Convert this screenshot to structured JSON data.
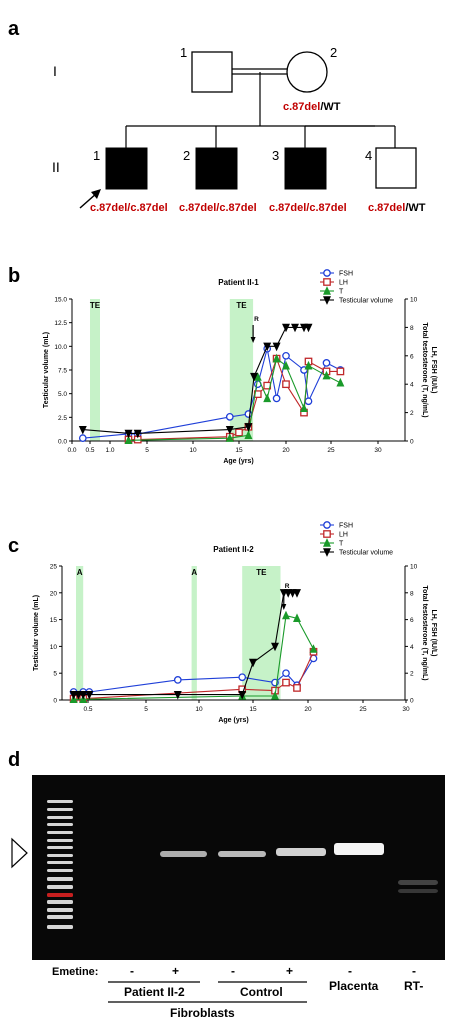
{
  "panels": {
    "a": {
      "label": "a",
      "generations": [
        "I",
        "II"
      ],
      "gen1_individuals": [
        "1",
        "2"
      ],
      "gen1_genotype_mut": "c.87del",
      "gen1_genotype_wt": "/WT",
      "gen2": [
        {
          "num": "1",
          "genotype_mut": "c.87del/c.87del",
          "genotype_wt": "",
          "affected": true,
          "proband": true
        },
        {
          "num": "2",
          "genotype_mut": "c.87del/c.87del",
          "genotype_wt": "",
          "affected": true,
          "proband": false
        },
        {
          "num": "3",
          "genotype_mut": "c.87del/c.87del",
          "genotype_wt": "",
          "affected": true,
          "proband": false
        },
        {
          "num": "4",
          "genotype_mut": "c.87del",
          "genotype_wt": "/WT",
          "affected": false,
          "proband": false
        }
      ],
      "colors": {
        "mutation_text": "#c00000",
        "affected_fill": "#000000"
      }
    },
    "b": {
      "label": "b"
    },
    "c": {
      "label": "c"
    },
    "d": {
      "label": "d",
      "emetine_label": "Emetine:",
      "lane_marks": [
        "-",
        "+",
        "-",
        "+",
        "-",
        "-"
      ],
      "group_patient": "Patient II-2",
      "group_control": "Control",
      "group_fibroblasts": "Fibroblasts",
      "placenta": "Placenta",
      "rt_minus": "RT-"
    }
  },
  "chart_data": [
    {
      "type": "line",
      "panel": "b",
      "title": "Patient II-1",
      "xlabel": "Age (yrs)",
      "ylabel_left": "Testicular volume (mL)",
      "ylabel_right": "LH, FSH (IU/L)\nTotal testosterone (T, ng/mL)",
      "xticks": [
        "0.0",
        "0.5",
        "1.0",
        "5",
        "10",
        "15",
        "20",
        "25",
        "30"
      ],
      "yticks_left": [
        "0.0",
        "2.5",
        "5.0",
        "7.5",
        "10.0",
        "12.5",
        "15.0"
      ],
      "yticks_right": [
        "0",
        "2",
        "4",
        "6",
        "8",
        "10"
      ],
      "ylim_left": [
        0,
        15
      ],
      "ylim_right": [
        0,
        10
      ],
      "shaded": [
        {
          "label": "TE",
          "from": 0.5,
          "to": 0.75
        },
        {
          "label": "TE",
          "from": 14,
          "to": 16.5
        }
      ],
      "arrow": {
        "label": "R",
        "x": 16.5
      },
      "legend": "top-right",
      "series": [
        {
          "name": "FSH",
          "color": "#1f3fd8",
          "marker": "circle",
          "axis": "right",
          "x": [
            0.3,
            3,
            4,
            14,
            16,
            17,
            18,
            19,
            20,
            22,
            22.5,
            24.5,
            26
          ],
          "y": [
            0.2,
            0.5,
            0.5,
            1.7,
            1.9,
            4,
            6.5,
            3,
            6,
            5,
            2.8,
            5.5,
            5
          ]
        },
        {
          "name": "LH",
          "color": "#c0282a",
          "marker": "square",
          "axis": "right",
          "x": [
            3,
            4,
            14,
            15,
            16,
            17,
            18,
            19,
            20,
            22,
            22.5,
            24.5,
            26
          ],
          "y": [
            0.1,
            0.1,
            0.3,
            0.6,
            1,
            3.3,
            3.9,
            5.8,
            4,
            2,
            5.6,
            4.9,
            4.9
          ]
        },
        {
          "name": "T",
          "color": "#1a9a2a",
          "marker": "triangle",
          "axis": "right",
          "x": [
            3,
            14,
            16,
            17,
            18,
            19,
            20,
            22,
            22.5,
            24.5,
            26
          ],
          "y": [
            0.05,
            0.2,
            0.4,
            4.5,
            3,
            5.8,
            5.3,
            2.3,
            5.3,
            4.6,
            4.1
          ]
        },
        {
          "name": "Testicular volume",
          "color": "#000000",
          "marker": "triangle-down",
          "axis": "left",
          "x": [
            0.3,
            3,
            4,
            14,
            16,
            16.6,
            18,
            19,
            20,
            21,
            22,
            22.5
          ],
          "y": [
            1.2,
            0.8,
            0.8,
            1.2,
            1.5,
            6.8,
            10,
            10,
            12,
            12,
            12,
            12
          ]
        }
      ]
    },
    {
      "type": "line",
      "panel": "c",
      "title": "Patient II-2",
      "xlabel": "Age (yrs)",
      "ylabel_left": "Testicular volume (mL)",
      "ylabel_right": "LH, FSH (IU/L)\nTotal testosterone (T, ng/mL)",
      "xticks": [
        "0.5",
        "5",
        "10",
        "15",
        "20",
        "25",
        "30"
      ],
      "yticks_left": [
        "0",
        "5",
        "10",
        "15",
        "20",
        "25"
      ],
      "yticks_right": [
        "0",
        "2",
        "4",
        "6",
        "8",
        "10"
      ],
      "ylim_left": [
        0,
        25
      ],
      "ylim_right": [
        0,
        10
      ],
      "shaded": [
        {
          "label": "A",
          "from": 0.25,
          "to": 0.4
        },
        {
          "label": "A",
          "from": 9.3,
          "to": 9.8
        },
        {
          "label": "TE",
          "from": 14,
          "to": 17.5
        }
      ],
      "arrow": {
        "label": "R",
        "x": 17.8
      },
      "legend": "top-right",
      "series": [
        {
          "name": "FSH",
          "color": "#1f3fd8",
          "marker": "circle",
          "axis": "right",
          "x": [
            0.2,
            0.4,
            0.6,
            8,
            14,
            17,
            18,
            19,
            20.5
          ],
          "y": [
            0.6,
            0.6,
            0.6,
            1.5,
            1.7,
            1.3,
            2,
            1.1,
            3.1
          ]
        },
        {
          "name": "LH",
          "color": "#c0282a",
          "marker": "square",
          "axis": "right",
          "x": [
            0.2,
            0.4,
            14,
            17,
            18,
            19,
            20.5
          ],
          "y": [
            0.1,
            0.1,
            0.8,
            0.7,
            1.3,
            0.9,
            3.6
          ]
        },
        {
          "name": "T",
          "color": "#1a9a2a",
          "marker": "triangle",
          "axis": "right",
          "x": [
            0.2,
            0.4,
            14,
            17,
            18,
            19,
            20.5
          ],
          "y": [
            0.05,
            0.05,
            0.3,
            0.3,
            6.3,
            6.1,
            3.8
          ]
        },
        {
          "name": "Testicular volume",
          "color": "#000000",
          "marker": "triangle-down",
          "axis": "left",
          "x": [
            0.2,
            0.3,
            0.4,
            0.6,
            8,
            14,
            15,
            17,
            17.8,
            18.2,
            18.6,
            19
          ],
          "y": [
            1,
            1,
            1,
            1,
            1,
            1,
            7,
            10,
            20,
            20,
            20,
            20
          ]
        }
      ]
    }
  ]
}
